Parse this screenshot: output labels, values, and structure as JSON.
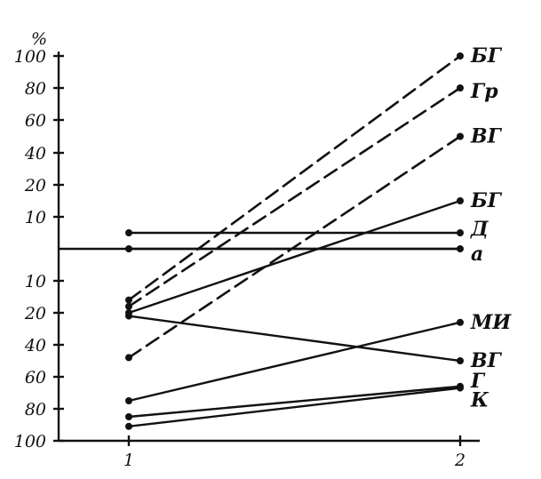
{
  "chart_data": {
    "type": "line",
    "ylabel": "%",
    "x": [
      1,
      2
    ],
    "x_tick_labels": [
      "1",
      "2"
    ],
    "y_upper_ticks": [
      "100",
      "80",
      "60",
      "40",
      "20",
      "10"
    ],
    "y_lower_ticks": [
      "10",
      "20",
      "40",
      "60",
      "80",
      "100"
    ],
    "y_tick_values": [
      100,
      80,
      60,
      40,
      20,
      10,
      -10,
      -20,
      -40,
      -60,
      -80,
      -100
    ],
    "grid": false,
    "baseline_value": 0,
    "series": [
      {
        "name": "БГ",
        "values": [
          -16,
          100
        ],
        "style": "dashed"
      },
      {
        "name": "Гр",
        "values": [
          -18,
          80
        ],
        "style": "dashed"
      },
      {
        "name": "ВГ",
        "values": [
          -48,
          50
        ],
        "style": "dashed"
      },
      {
        "name": "БГ",
        "values": [
          -20,
          15
        ],
        "style": "solid"
      },
      {
        "name": "Д",
        "values": [
          5,
          5
        ],
        "style": "solid"
      },
      {
        "name": "а",
        "values": [
          0,
          0
        ],
        "style": "solid"
      },
      {
        "name": "МИ",
        "values": [
          -75,
          -26
        ],
        "style": "solid"
      },
      {
        "name": "ВГ",
        "values": [
          -22,
          -50
        ],
        "style": "solid"
      },
      {
        "name": "Г",
        "values": [
          -85,
          -66
        ],
        "style": "solid"
      },
      {
        "name": "К",
        "values": [
          -91,
          -67
        ],
        "style": "solid"
      }
    ]
  }
}
